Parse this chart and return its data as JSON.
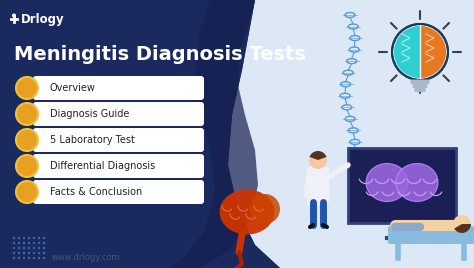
{
  "bg_dark": "#1a2a5e",
  "bg_light": "#dce8f5",
  "title": "Meningitis Diagnosis Tests",
  "brand": "+ Drlogy",
  "website": "www.drlogy.com",
  "menu_items": [
    "Overview",
    "Diagnosis Guide",
    "5 Laboratory Test",
    "Differential Diagnosis",
    "Facts & Conclusion"
  ],
  "menu_bg": "#ffffff",
  "menu_text": "#222222",
  "icon_bg": "#e8a020",
  "icon_border": "#f0c040",
  "title_color": "#ffffff",
  "brand_color": "#ffffff",
  "title_fontsize": 14,
  "brand_fontsize": 8.5,
  "menu_fontsize": 7,
  "website_color": "#445577",
  "blob_dark": "#162050",
  "accent_teal": "#2ecfcf",
  "accent_orange": "#e87820",
  "spine_color": "#5599dd",
  "scan_bg": "#1a1f55",
  "brain_purple": "#9966dd",
  "brain_red": "#cc3300",
  "patient_skin": "#f5d0a0",
  "table_color": "#88bbdd",
  "doctor_coat": "#f0f0f8",
  "dot_color": "#4466aa"
}
